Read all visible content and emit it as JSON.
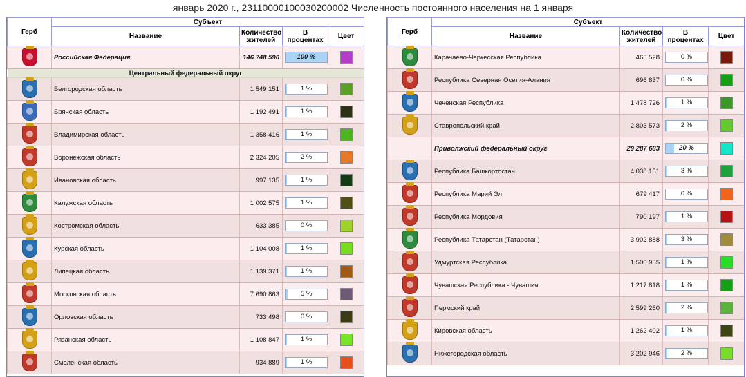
{
  "title": "январь 2020 г., 23110000100030200002 Численность постоянного населения на 1 января",
  "headers": {
    "coat": "Герб",
    "subject": "Субъект",
    "name": "Название",
    "population": "Количество жителей",
    "percent": "В процентах",
    "color": "Цвет"
  },
  "left": {
    "rows": [
      {
        "kind": "region",
        "bold": true,
        "name": "Российская Федерация",
        "pop": "146 748 590",
        "pct": "100 %",
        "fill": 1.0,
        "color": "#b43cc8",
        "coat": "coat-russia-icon",
        "coat_color": "#c8102e"
      },
      {
        "kind": "district",
        "name": "Центральный федеральный округ"
      },
      {
        "kind": "region",
        "name": "Белгородская область",
        "pop": "1 549 151",
        "pct": "1 %",
        "fill": 0.01,
        "color": "#5aa028",
        "coat": "coat-belgorod-icon",
        "coat_color": "#2a6fb0"
      },
      {
        "kind": "region",
        "name": "Брянская область",
        "pop": "1 192 491",
        "pct": "1 %",
        "fill": 0.01,
        "color": "#2d3214",
        "coat": "coat-bryansk-icon",
        "coat_color": "#3a6ab8"
      },
      {
        "kind": "region",
        "name": "Владимирская область",
        "pop": "1 358 416",
        "pct": "1 %",
        "fill": 0.01,
        "color": "#4bb41e",
        "coat": "coat-vladimir-icon",
        "coat_color": "#c0392b"
      },
      {
        "kind": "region",
        "name": "Воронежская область",
        "pop": "2 324 205",
        "pct": "2 %",
        "fill": 0.02,
        "color": "#e87828",
        "coat": "coat-voronezh-icon",
        "coat_color": "#c0392b"
      },
      {
        "kind": "region",
        "name": "Ивановская область",
        "pop": "997 135",
        "pct": "1 %",
        "fill": 0.01,
        "color": "#143c14",
        "coat": "coat-ivanovo-icon",
        "coat_color": "#d4a017"
      },
      {
        "kind": "region",
        "name": "Калужская область",
        "pop": "1 002 575",
        "pct": "1 %",
        "fill": 0.01,
        "color": "#505014",
        "coat": "coat-kaluga-icon",
        "coat_color": "#2e8b3e"
      },
      {
        "kind": "region",
        "name": "Костромская область",
        "pop": "633 385",
        "pct": "0 %",
        "fill": 0.0,
        "color": "#a0d228",
        "coat": "coat-kostroma-icon",
        "coat_color": "#d4a017"
      },
      {
        "kind": "region",
        "name": "Курская область",
        "pop": "1 104 008",
        "pct": "1 %",
        "fill": 0.01,
        "color": "#78dc1e",
        "coat": "coat-kursk-icon",
        "coat_color": "#2a6fb0"
      },
      {
        "kind": "region",
        "name": "Липецкая область",
        "pop": "1 139 371",
        "pct": "1 %",
        "fill": 0.01,
        "color": "#a05a14",
        "coat": "coat-lipetsk-icon",
        "coat_color": "#d4a017"
      },
      {
        "kind": "region",
        "name": "Московская область",
        "pop": "7 690 863",
        "pct": "5 %",
        "fill": 0.05,
        "color": "#6e5a78",
        "coat": "coat-moscow-oblast-icon",
        "coat_color": "#c0392b"
      },
      {
        "kind": "region",
        "name": "Орловская область",
        "pop": "733 498",
        "pct": "0 %",
        "fill": 0.0,
        "color": "#3c3c14",
        "coat": "coat-oryol-icon",
        "coat_color": "#2a6fb0"
      },
      {
        "kind": "region",
        "name": "Рязанская область",
        "pop": "1 108 847",
        "pct": "1 %",
        "fill": 0.01,
        "color": "#78e628",
        "coat": "coat-ryazan-icon",
        "coat_color": "#d4a017"
      },
      {
        "kind": "region",
        "name": "Смоленская область",
        "pop": "934 889",
        "pct": "1 %",
        "fill": 0.01,
        "color": "#e6501e",
        "coat": "coat-smolensk-icon",
        "coat_color": "#c0392b"
      }
    ]
  },
  "right": {
    "rows": [
      {
        "kind": "region",
        "name": "Карачаево-Черкесская Республика",
        "pop": "465 528",
        "pct": "0 %",
        "fill": 0.0,
        "color": "#7a1a0a",
        "coat": "coat-karachay-cherkessia-icon",
        "coat_color": "#2e8b3e"
      },
      {
        "kind": "region",
        "name": "Республика Северная Осетия-Алания",
        "pop": "696 837",
        "pct": "0 %",
        "fill": 0.0,
        "color": "#14a014",
        "coat": "coat-north-ossetia-icon",
        "coat_color": "#c0392b"
      },
      {
        "kind": "region",
        "name": "Чеченская Республика",
        "pop": "1 478 726",
        "pct": "1 %",
        "fill": 0.01,
        "color": "#3c9628",
        "coat": "coat-chechnya-icon",
        "coat_color": "#2a6fb0"
      },
      {
        "kind": "region",
        "name": "Ставропольский край",
        "pop": "2 803 573",
        "pct": "2 %",
        "fill": 0.02,
        "color": "#64c832",
        "coat": "coat-stavropol-icon",
        "coat_color": "#d4a017"
      },
      {
        "kind": "region",
        "bold": true,
        "district_total": true,
        "name": "Приволжский федеральный округ",
        "pop": "29 287 683",
        "pct": "20 %",
        "fill": 0.2,
        "color": "#14e6c8",
        "coat": "",
        "coat_color": ""
      },
      {
        "kind": "region",
        "name": "Республика Башкортостан",
        "pop": "4 038 151",
        "pct": "3 %",
        "fill": 0.03,
        "color": "#1ea03c",
        "coat": "coat-bashkortostan-icon",
        "coat_color": "#2a6fb0"
      },
      {
        "kind": "region",
        "name": "Республика Марий Эл",
        "pop": "679 417",
        "pct": "0 %",
        "fill": 0.0,
        "color": "#f0641e",
        "coat": "coat-mari-el-icon",
        "coat_color": "#c0392b"
      },
      {
        "kind": "region",
        "name": "Республика Мордовия",
        "pop": "790 197",
        "pct": "1 %",
        "fill": 0.01,
        "color": "#b41414",
        "coat": "coat-mordovia-icon",
        "coat_color": "#c0392b"
      },
      {
        "kind": "region",
        "name": "Республика Татарстан (Татарстан)",
        "pop": "3 902 888",
        "pct": "3 %",
        "fill": 0.03,
        "color": "#a08c3c",
        "coat": "coat-tatarstan-icon",
        "coat_color": "#2e8b3e"
      },
      {
        "kind": "region",
        "name": "Удмуртская Республика",
        "pop": "1 500 955",
        "pct": "1 %",
        "fill": 0.01,
        "color": "#28dc28",
        "coat": "coat-udmurtia-icon",
        "coat_color": "#c0392b"
      },
      {
        "kind": "region",
        "name": "Чувашская Республика - Чувашия",
        "pop": "1 217 818",
        "pct": "1 %",
        "fill": 0.01,
        "color": "#14a014",
        "coat": "coat-chuvashia-icon",
        "coat_color": "#c0392b"
      },
      {
        "kind": "region",
        "name": "Пермский край",
        "pop": "2 599 260",
        "pct": "2 %",
        "fill": 0.02,
        "color": "#5ab43c",
        "coat": "coat-perm-icon",
        "coat_color": "#c0392b"
      },
      {
        "kind": "region",
        "name": "Кировская область",
        "pop": "1 262 402",
        "pct": "1 %",
        "fill": 0.01,
        "color": "#3c4614",
        "coat": "coat-kirov-icon",
        "coat_color": "#d4a017"
      },
      {
        "kind": "region",
        "name": "Нижегородская область",
        "pop": "3 202 946",
        "pct": "2 %",
        "fill": 0.02,
        "color": "#78dc28",
        "coat": "coat-nizhny-novgorod-icon",
        "coat_color": "#2a6fb0"
      }
    ]
  }
}
